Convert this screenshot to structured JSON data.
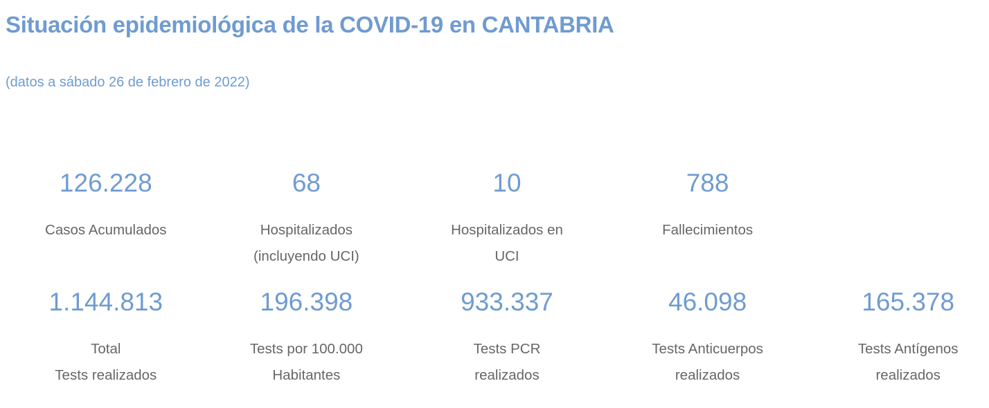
{
  "header": {
    "title": "Situación epidemiológica de la COVID-19 en CANTABRIA",
    "subtitle": "(datos a sábado 26 de febrero de 2022)"
  },
  "colors": {
    "accent_blue": "#6f9bd0",
    "label_gray": "#666666",
    "background": "#ffffff"
  },
  "stats": {
    "row1": [
      {
        "value": "126.228",
        "lines": [
          "Casos Acumulados"
        ]
      },
      {
        "value": "68",
        "lines": [
          "Hospitalizados",
          "(incluyendo UCI)"
        ]
      },
      {
        "value": "10",
        "lines": [
          "Hospitalizados en",
          "UCI"
        ]
      },
      {
        "value": "788",
        "lines": [
          "Fallecimientos"
        ]
      }
    ],
    "row2": [
      {
        "value": "1.144.813",
        "lines": [
          "Total",
          "Tests realizados"
        ]
      },
      {
        "value": "196.398",
        "lines": [
          "Tests por 100.000",
          "Habitantes"
        ]
      },
      {
        "value": "933.337",
        "lines": [
          "Tests PCR",
          "realizados"
        ]
      },
      {
        "value": "46.098",
        "lines": [
          "Tests Anticuerpos",
          "realizados"
        ]
      },
      {
        "value": "165.378",
        "lines": [
          "Tests Antígenos",
          "realizados"
        ]
      }
    ]
  }
}
